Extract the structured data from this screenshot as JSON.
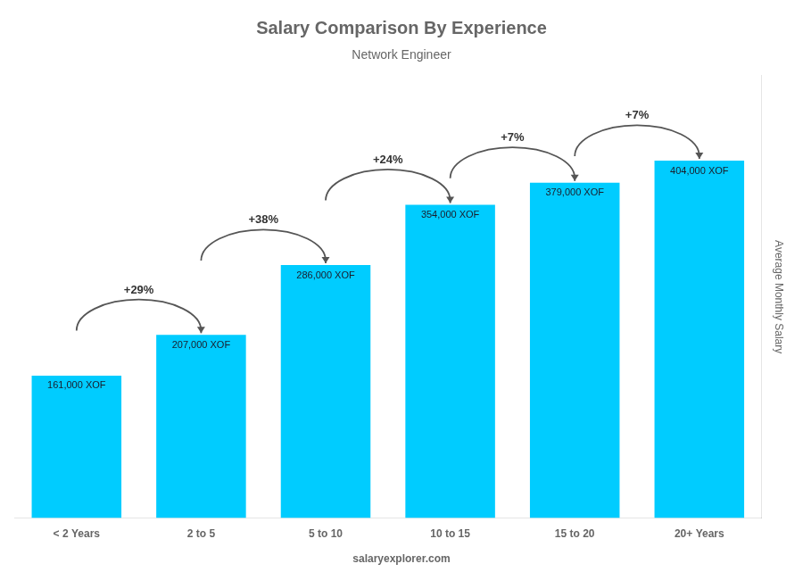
{
  "chart_data": {
    "type": "bar",
    "title": "Salary Comparison By Experience",
    "subtitle": "Network Engineer",
    "categories": [
      "< 2 Years",
      "2 to 5",
      "5 to 10",
      "10 to 15",
      "15 to 20",
      "20+ Years"
    ],
    "values": [
      161000,
      207000,
      286000,
      354000,
      379000,
      404000
    ],
    "value_labels": [
      "161,000 XOF",
      "207,000 XOF",
      "286,000 XOF",
      "354,000 XOF",
      "379,000 XOF",
      "404,000 XOF"
    ],
    "data_labels": true,
    "color": "#00ccff",
    "ylabel": "Average Monthly Salary",
    "ylim": [
      0,
      500000
    ],
    "yticks": [],
    "tick_labels": "x",
    "grid": false,
    "annotations": [
      {
        "text": "+29%",
        "from": "< 2 Years",
        "to": "2 to 5"
      },
      {
        "text": "+38%",
        "from": "2 to 5",
        "to": "5 to 10"
      },
      {
        "text": "+24%",
        "from": "5 to 10",
        "to": "10 to 15"
      },
      {
        "text": "+7%",
        "from": "10 to 15",
        "to": "15 to 20"
      },
      {
        "text": "+7%",
        "from": "15 to 20",
        "to": "20+ Years"
      },
      {
        "text": "salaryexplorer.com"
      }
    ]
  }
}
